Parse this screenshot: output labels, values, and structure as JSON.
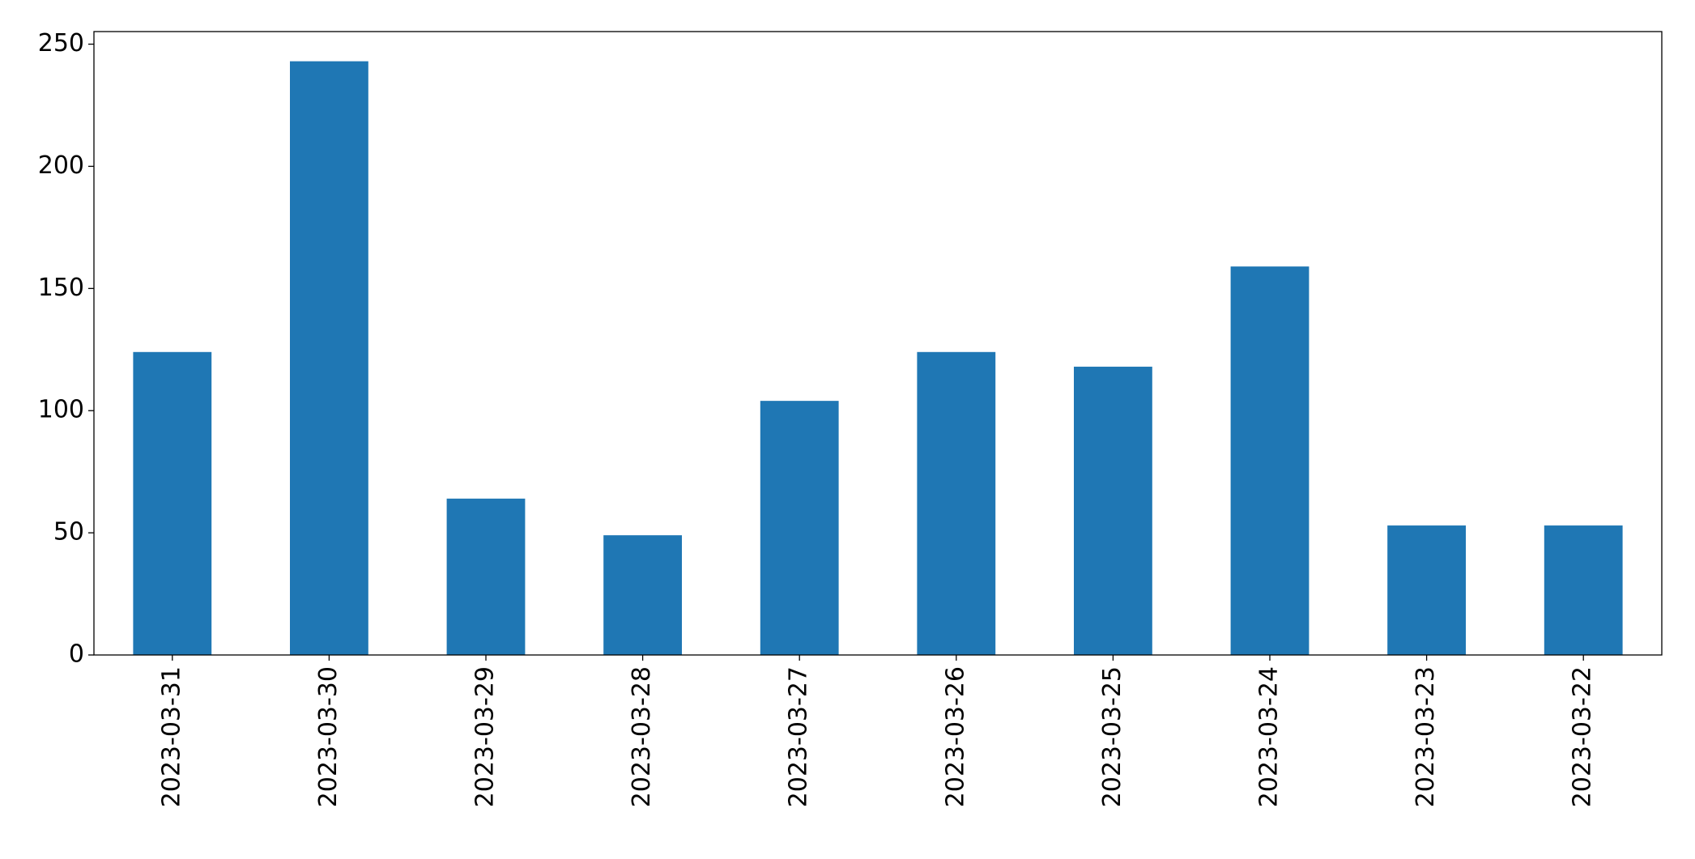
{
  "chart_data": {
    "type": "bar",
    "categories": [
      "2023-03-31",
      "2023-03-30",
      "2023-03-29",
      "2023-03-28",
      "2023-03-27",
      "2023-03-26",
      "2023-03-25",
      "2023-03-24",
      "2023-03-23",
      "2023-03-22"
    ],
    "values": [
      124,
      243,
      64,
      49,
      104,
      124,
      118,
      159,
      53,
      53
    ],
    "color": "#1f77b4",
    "ylim": [
      0,
      255.15
    ],
    "yticks": [
      0,
      50,
      100,
      150,
      200,
      250
    ],
    "grid": false
  }
}
